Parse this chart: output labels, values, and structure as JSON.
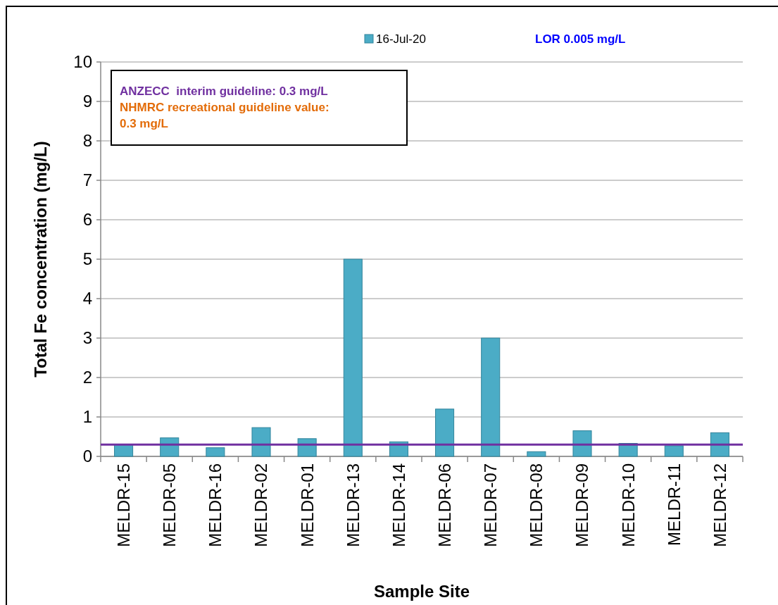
{
  "chart_data": {
    "type": "bar",
    "xlabel": "Sample Site",
    "ylabel": "Total Fe concentration (mg/L)",
    "categories": [
      "MELDR-15",
      "MELDR-05",
      "MELDR-16",
      "MELDR-02",
      "MELDR-01",
      "MELDR-13",
      "MELDR-14",
      "MELDR-06",
      "MELDR-07",
      "MELDR-08",
      "MELDR-09",
      "MELDR-10",
      "MELDR-11",
      "MELDR-12"
    ],
    "series": [
      {
        "name": "16-Jul-20",
        "color": "#4bacc6",
        "values": [
          0.3,
          0.47,
          0.22,
          0.73,
          0.45,
          5.0,
          0.37,
          1.2,
          3.0,
          0.12,
          0.65,
          0.33,
          0.27,
          0.6
        ]
      }
    ],
    "ylim": [
      0,
      10
    ],
    "yticks": [
      0,
      1,
      2,
      3,
      4,
      5,
      6,
      7,
      8,
      9,
      10
    ],
    "grid": "y",
    "legend": "top",
    "ref_lines": [
      {
        "axis": "y",
        "value": 0.3,
        "color": "#7030a0"
      }
    ],
    "annotations": [
      "ANZECC  interim guideline: 0.3 mg/L",
      "NHMRC recreational guideline value:",
      "0.3 mg/L",
      "LOR 0.005 mg/L"
    ]
  }
}
